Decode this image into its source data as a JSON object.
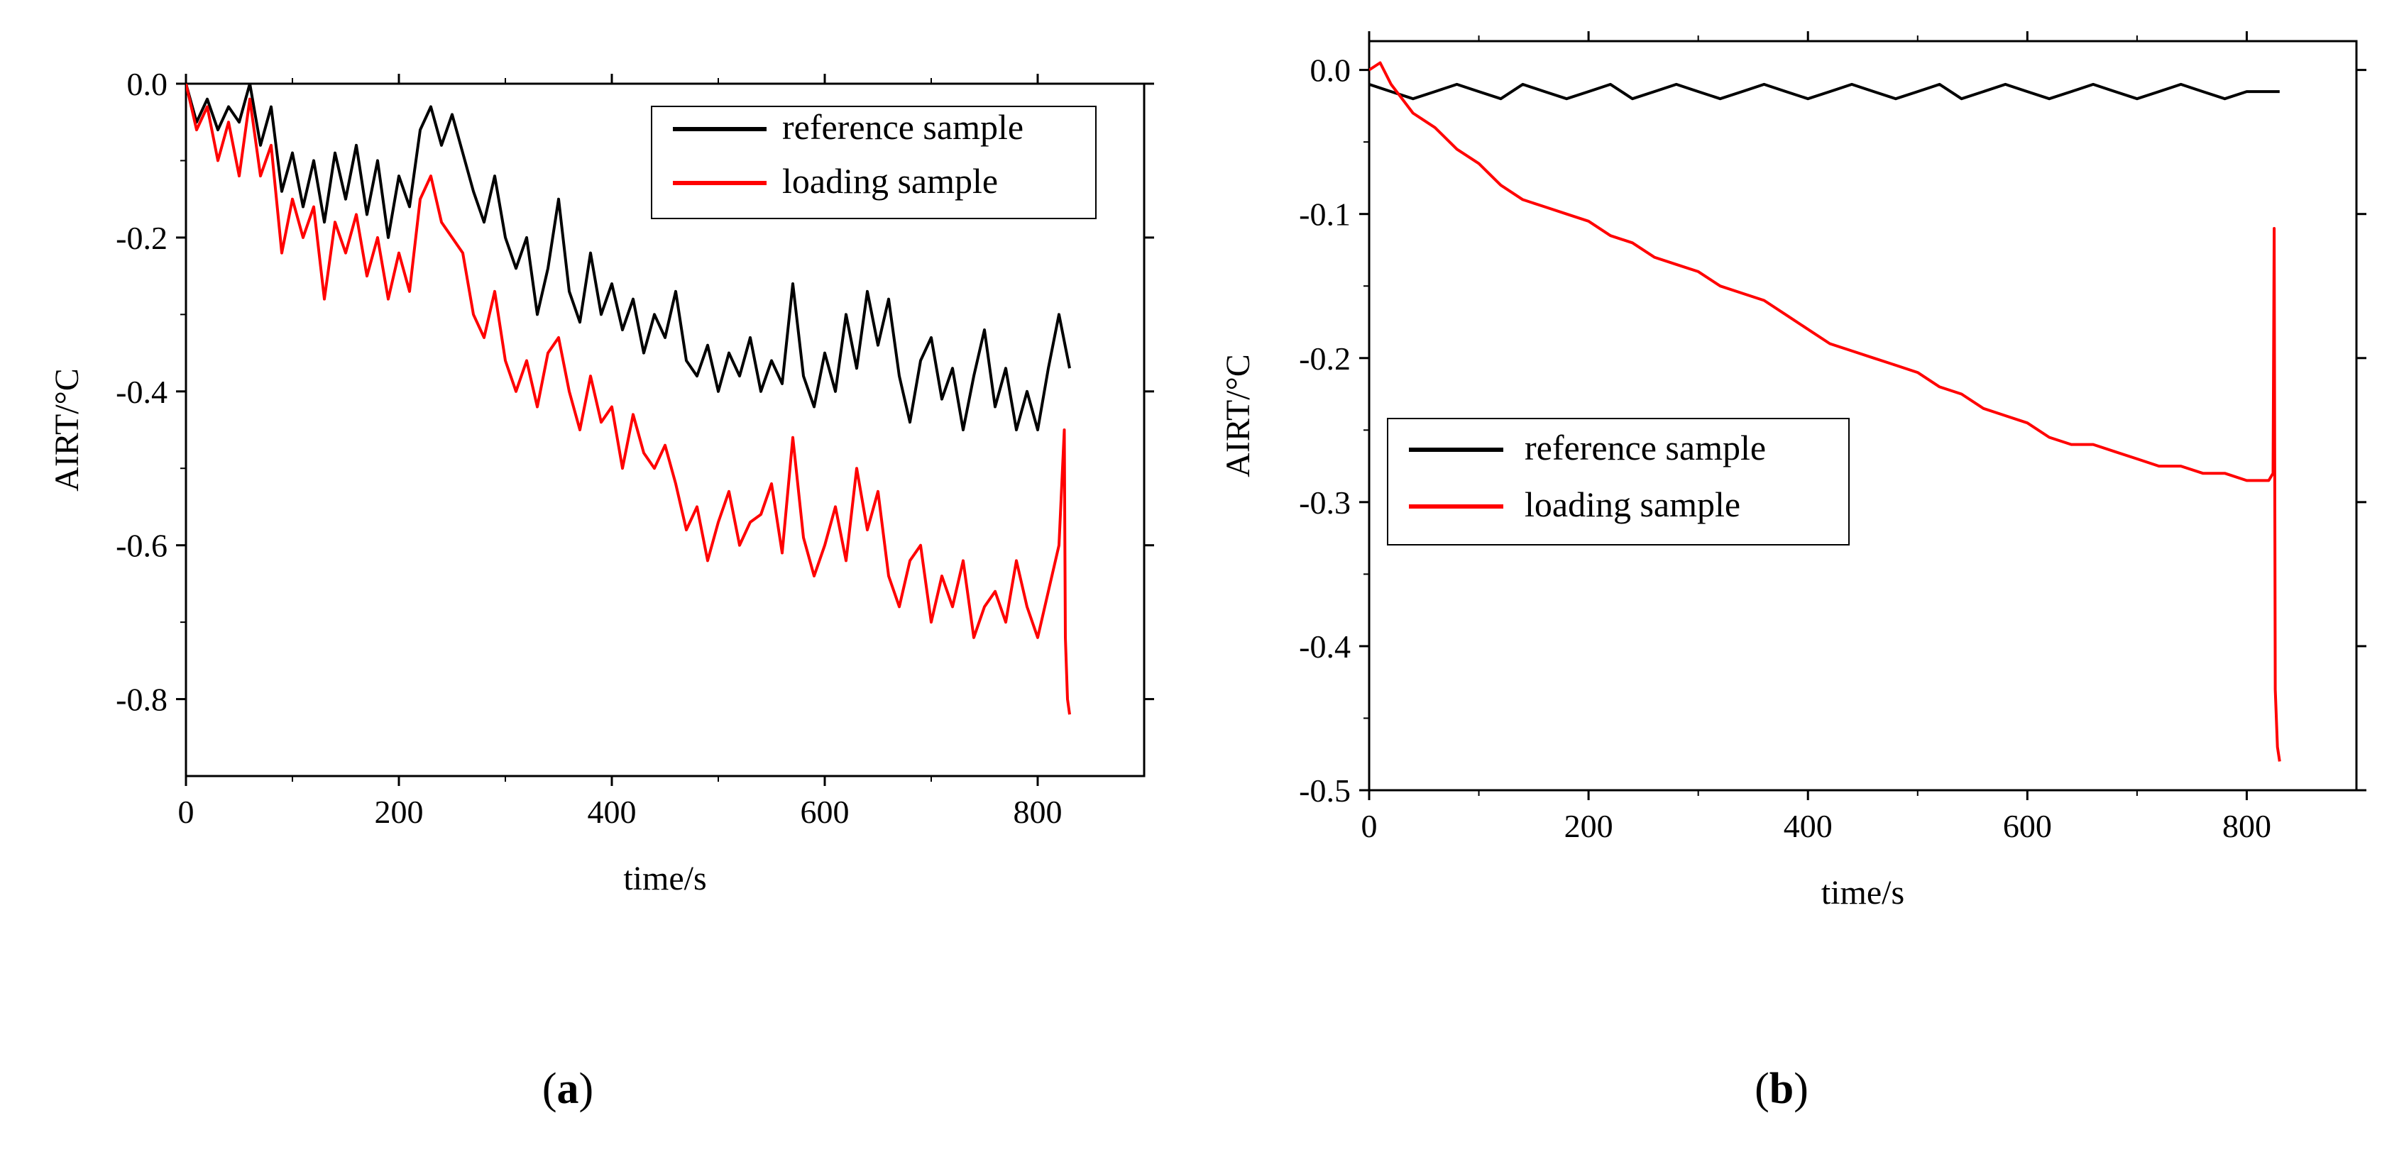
{
  "figure": {
    "captions": [
      {
        "open": "(",
        "letter": "a",
        "close": ")"
      },
      {
        "open": "(",
        "letter": "b",
        "close": ")"
      }
    ]
  },
  "chart_data": [
    {
      "type": "line",
      "panel": "a",
      "xlabel": "time/s",
      "ylabel": "AIRT/°C",
      "xlim": [
        0,
        900
      ],
      "ylim": [
        -0.9,
        0.0
      ],
      "xticks": [
        0,
        200,
        400,
        600,
        800
      ],
      "xtick_labels": [
        "0",
        "200",
        "400",
        "600",
        "800"
      ],
      "yticks": [
        0.0,
        -0.2,
        -0.4,
        -0.6,
        -0.8
      ],
      "ytick_labels": [
        "0.0",
        "-0.2",
        "-0.4",
        "-0.6",
        "-0.8"
      ],
      "legend_position": "top-right",
      "series": [
        {
          "name": "reference sample",
          "color": "#000000",
          "x": [
            0,
            10,
            20,
            30,
            40,
            50,
            60,
            70,
            80,
            90,
            100,
            110,
            120,
            130,
            140,
            150,
            160,
            170,
            180,
            190,
            200,
            210,
            220,
            230,
            240,
            250,
            260,
            270,
            280,
            290,
            300,
            310,
            320,
            330,
            340,
            350,
            360,
            370,
            380,
            390,
            400,
            410,
            420,
            430,
            440,
            450,
            460,
            470,
            480,
            490,
            500,
            510,
            520,
            530,
            540,
            550,
            560,
            570,
            580,
            590,
            600,
            610,
            620,
            630,
            640,
            650,
            660,
            670,
            680,
            690,
            700,
            710,
            720,
            730,
            740,
            750,
            760,
            770,
            780,
            790,
            800,
            810,
            820,
            830
          ],
          "y": [
            0.0,
            -0.05,
            -0.02,
            -0.06,
            -0.03,
            -0.05,
            0.0,
            -0.08,
            -0.03,
            -0.14,
            -0.09,
            -0.16,
            -0.1,
            -0.18,
            -0.09,
            -0.15,
            -0.08,
            -0.17,
            -0.1,
            -0.2,
            -0.12,
            -0.16,
            -0.06,
            -0.03,
            -0.08,
            -0.04,
            -0.09,
            -0.14,
            -0.18,
            -0.12,
            -0.2,
            -0.24,
            -0.2,
            -0.3,
            -0.24,
            -0.15,
            -0.27,
            -0.31,
            -0.22,
            -0.3,
            -0.26,
            -0.32,
            -0.28,
            -0.35,
            -0.3,
            -0.33,
            -0.27,
            -0.36,
            -0.38,
            -0.34,
            -0.4,
            -0.35,
            -0.38,
            -0.33,
            -0.4,
            -0.36,
            -0.39,
            -0.26,
            -0.38,
            -0.42,
            -0.35,
            -0.4,
            -0.3,
            -0.37,
            -0.27,
            -0.34,
            -0.28,
            -0.38,
            -0.44,
            -0.36,
            -0.33,
            -0.41,
            -0.37,
            -0.45,
            -0.38,
            -0.32,
            -0.42,
            -0.37,
            -0.45,
            -0.4,
            -0.45,
            -0.37,
            -0.3,
            -0.37
          ]
        },
        {
          "name": "loading sample",
          "color": "#ff0000",
          "x": [
            0,
            10,
            20,
            30,
            40,
            50,
            60,
            70,
            80,
            90,
            100,
            110,
            120,
            130,
            140,
            150,
            160,
            170,
            180,
            190,
            200,
            210,
            220,
            230,
            240,
            250,
            260,
            270,
            280,
            290,
            300,
            310,
            320,
            330,
            340,
            350,
            360,
            370,
            380,
            390,
            400,
            410,
            420,
            430,
            440,
            450,
            460,
            470,
            480,
            490,
            500,
            510,
            520,
            530,
            540,
            550,
            560,
            570,
            580,
            590,
            600,
            610,
            620,
            630,
            640,
            650,
            660,
            670,
            680,
            690,
            700,
            710,
            720,
            730,
            740,
            750,
            760,
            770,
            780,
            790,
            800,
            810,
            820,
            825,
            826,
            828,
            830
          ],
          "y": [
            0.0,
            -0.06,
            -0.03,
            -0.1,
            -0.05,
            -0.12,
            -0.02,
            -0.12,
            -0.08,
            -0.22,
            -0.15,
            -0.2,
            -0.16,
            -0.28,
            -0.18,
            -0.22,
            -0.17,
            -0.25,
            -0.2,
            -0.28,
            -0.22,
            -0.27,
            -0.15,
            -0.12,
            -0.18,
            -0.2,
            -0.22,
            -0.3,
            -0.33,
            -0.27,
            -0.36,
            -0.4,
            -0.36,
            -0.42,
            -0.35,
            -0.33,
            -0.4,
            -0.45,
            -0.38,
            -0.44,
            -0.42,
            -0.5,
            -0.43,
            -0.48,
            -0.5,
            -0.47,
            -0.52,
            -0.58,
            -0.55,
            -0.62,
            -0.57,
            -0.53,
            -0.6,
            -0.57,
            -0.56,
            -0.52,
            -0.61,
            -0.46,
            -0.59,
            -0.64,
            -0.6,
            -0.55,
            -0.62,
            -0.5,
            -0.58,
            -0.53,
            -0.64,
            -0.68,
            -0.62,
            -0.6,
            -0.7,
            -0.64,
            -0.68,
            -0.62,
            -0.72,
            -0.68,
            -0.66,
            -0.7,
            -0.62,
            -0.68,
            -0.72,
            -0.66,
            -0.6,
            -0.45,
            -0.72,
            -0.8,
            -0.82
          ]
        }
      ]
    },
    {
      "type": "line",
      "panel": "b",
      "xlabel": "time/s",
      "ylabel": "AIRT/°C",
      "xlim": [
        0,
        900
      ],
      "ylim": [
        -0.5,
        0.02
      ],
      "xticks": [
        0,
        200,
        400,
        600,
        800
      ],
      "xtick_labels": [
        "0",
        "200",
        "400",
        "600",
        "800"
      ],
      "yticks": [
        0.0,
        -0.1,
        -0.2,
        -0.3,
        -0.4,
        -0.5
      ],
      "ytick_labels": [
        "0.0",
        "-0.1",
        "-0.2",
        "-0.3",
        "-0.4",
        "-0.5"
      ],
      "legend_position": "center-left",
      "series": [
        {
          "name": "reference sample",
          "color": "#000000",
          "x": [
            0,
            20,
            40,
            60,
            80,
            100,
            120,
            140,
            160,
            180,
            200,
            220,
            240,
            260,
            280,
            300,
            320,
            340,
            360,
            380,
            400,
            420,
            440,
            460,
            480,
            500,
            520,
            540,
            560,
            580,
            600,
            620,
            640,
            660,
            680,
            700,
            720,
            740,
            760,
            780,
            800,
            820,
            830
          ],
          "y": [
            -0.01,
            -0.015,
            -0.02,
            -0.015,
            -0.01,
            -0.015,
            -0.02,
            -0.01,
            -0.015,
            -0.02,
            -0.015,
            -0.01,
            -0.02,
            -0.015,
            -0.01,
            -0.015,
            -0.02,
            -0.015,
            -0.01,
            -0.015,
            -0.02,
            -0.015,
            -0.01,
            -0.015,
            -0.02,
            -0.015,
            -0.01,
            -0.02,
            -0.015,
            -0.01,
            -0.015,
            -0.02,
            -0.015,
            -0.01,
            -0.015,
            -0.02,
            -0.015,
            -0.01,
            -0.015,
            -0.02,
            -0.015,
            -0.015,
            -0.015
          ]
        },
        {
          "name": "loading sample",
          "color": "#ff0000",
          "x": [
            0,
            10,
            20,
            30,
            40,
            50,
            60,
            80,
            100,
            120,
            140,
            160,
            180,
            200,
            220,
            240,
            260,
            280,
            300,
            320,
            340,
            360,
            380,
            400,
            420,
            440,
            460,
            480,
            500,
            520,
            540,
            560,
            580,
            600,
            620,
            640,
            660,
            680,
            700,
            720,
            740,
            760,
            780,
            800,
            810,
            820,
            824,
            825,
            826,
            828,
            830
          ],
          "y": [
            0.0,
            0.005,
            -0.01,
            -0.02,
            -0.03,
            -0.035,
            -0.04,
            -0.055,
            -0.065,
            -0.08,
            -0.09,
            -0.095,
            -0.1,
            -0.105,
            -0.115,
            -0.12,
            -0.13,
            -0.135,
            -0.14,
            -0.15,
            -0.155,
            -0.16,
            -0.17,
            -0.18,
            -0.19,
            -0.195,
            -0.2,
            -0.205,
            -0.21,
            -0.22,
            -0.225,
            -0.235,
            -0.24,
            -0.245,
            -0.255,
            -0.26,
            -0.26,
            -0.265,
            -0.27,
            -0.275,
            -0.275,
            -0.28,
            -0.28,
            -0.285,
            -0.285,
            -0.285,
            -0.28,
            -0.11,
            -0.43,
            -0.47,
            -0.48
          ]
        }
      ]
    }
  ]
}
